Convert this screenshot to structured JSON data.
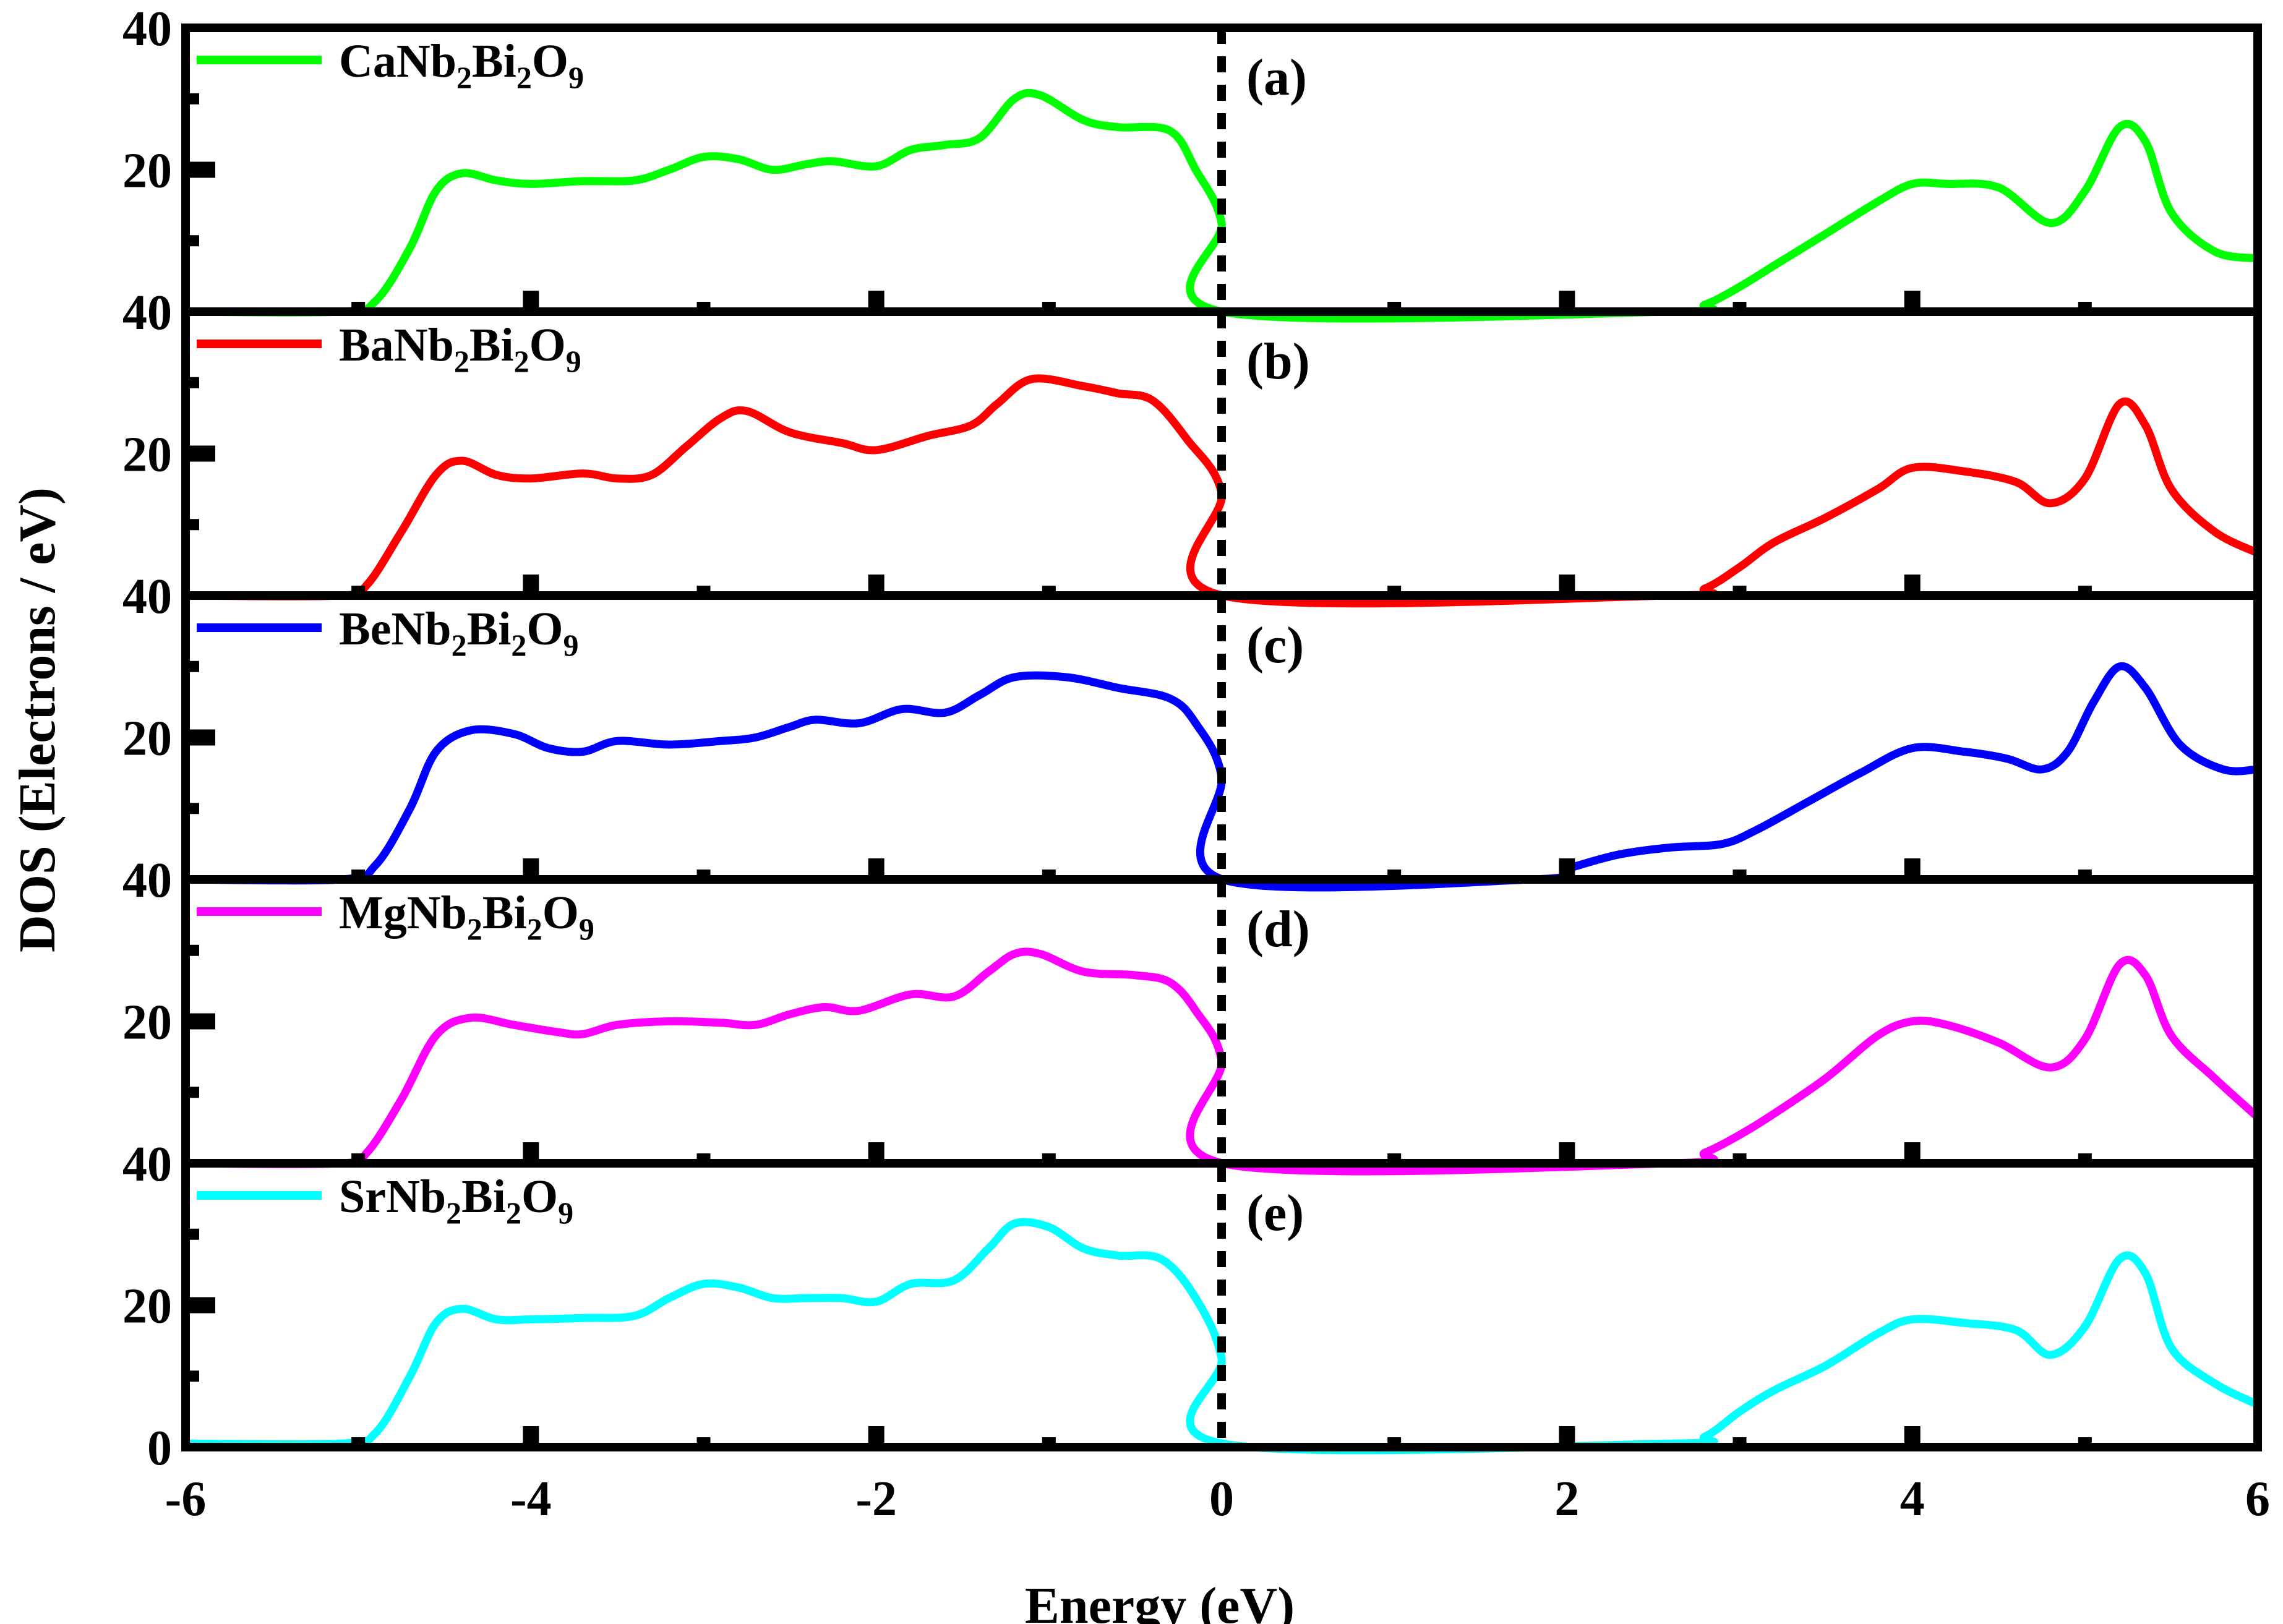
{
  "chart_data": {
    "type": "line",
    "xlabel": "Energy (eV)",
    "ylabel": "DOS (Electrons / eV)",
    "xlim": [
      -6,
      6
    ],
    "ylim": [
      0,
      40
    ],
    "x_ticks": [
      -6,
      -4,
      -2,
      0,
      2,
      4,
      6
    ],
    "x_tick_labels": [
      "-6",
      "-4",
      "-2",
      "0",
      "2",
      "4",
      "6"
    ],
    "y_tick_labels_top": [
      "40",
      "20",
      "40"
    ],
    "y_tick_labels_bottom": [
      "40",
      "20",
      "0"
    ],
    "fermi_level": 0,
    "grid": false,
    "legend_position": "top-left",
    "panels": [
      {
        "label": "(a)",
        "compound": {
          "base": "CaNb",
          "s1": "2",
          "mid": "Bi",
          "s2": "2",
          "end": "O",
          "s3": "9"
        },
        "color": "#00ff00",
        "points": [
          [
            -6,
            0
          ],
          [
            -5.1,
            0
          ],
          [
            -4.9,
            1.5
          ],
          [
            -4.7,
            9
          ],
          [
            -4.55,
            17
          ],
          [
            -4.4,
            19.5
          ],
          [
            -4.2,
            18.5
          ],
          [
            -4,
            18
          ],
          [
            -3.7,
            18.4
          ],
          [
            -3.4,
            18.5
          ],
          [
            -3.2,
            20
          ],
          [
            -3,
            21.8
          ],
          [
            -2.8,
            21.5
          ],
          [
            -2.6,
            20
          ],
          [
            -2.4,
            20.8
          ],
          [
            -2.25,
            21.2
          ],
          [
            -2,
            20.5
          ],
          [
            -1.8,
            22.8
          ],
          [
            -1.6,
            23.5
          ],
          [
            -1.4,
            24.5
          ],
          [
            -1.2,
            30
          ],
          [
            -1.05,
            30.5
          ],
          [
            -0.8,
            27
          ],
          [
            -0.6,
            26
          ],
          [
            -0.3,
            25.5
          ],
          [
            -0.15,
            20
          ],
          [
            0,
            12.5
          ],
          [
            0.005,
            0
          ],
          [
            2.6,
            0
          ],
          [
            2.8,
            1
          ],
          [
            3,
            3.5
          ],
          [
            3.2,
            6.5
          ],
          [
            3.5,
            11
          ],
          [
            3.8,
            15.5
          ],
          [
            4,
            18
          ],
          [
            4.2,
            18
          ],
          [
            4.5,
            17.5
          ],
          [
            4.8,
            12.5
          ],
          [
            5,
            17
          ],
          [
            5.2,
            26
          ],
          [
            5.35,
            24
          ],
          [
            5.5,
            14
          ],
          [
            5.75,
            8.5
          ],
          [
            6,
            7.5
          ]
        ]
      },
      {
        "label": "(b)",
        "compound": {
          "base": "BaNb",
          "s1": "2",
          "mid": "Bi",
          "s2": "2",
          "end": "O",
          "s3": "9"
        },
        "color": "#ff0000",
        "points": [
          [
            -6,
            0
          ],
          [
            -5.1,
            0
          ],
          [
            -4.95,
            1.5
          ],
          [
            -4.75,
            9
          ],
          [
            -4.55,
            17
          ],
          [
            -4.4,
            19
          ],
          [
            -4.2,
            17
          ],
          [
            -4,
            16.5
          ],
          [
            -3.7,
            17.2
          ],
          [
            -3.5,
            16.5
          ],
          [
            -3.3,
            17
          ],
          [
            -3.1,
            21
          ],
          [
            -2.9,
            25
          ],
          [
            -2.75,
            26
          ],
          [
            -2.5,
            23
          ],
          [
            -2.2,
            21.5
          ],
          [
            -2,
            20.5
          ],
          [
            -1.7,
            22.5
          ],
          [
            -1.45,
            24
          ],
          [
            -1.3,
            27
          ],
          [
            -1.1,
            30.5
          ],
          [
            -0.8,
            29.5
          ],
          [
            -0.6,
            28.5
          ],
          [
            -0.4,
            27.5
          ],
          [
            -0.2,
            22
          ],
          [
            0,
            14.5
          ],
          [
            0.005,
            0
          ],
          [
            2.6,
            0
          ],
          [
            2.8,
            1
          ],
          [
            3,
            4
          ],
          [
            3.2,
            7.5
          ],
          [
            3.5,
            11
          ],
          [
            3.8,
            15
          ],
          [
            4,
            18
          ],
          [
            4.3,
            17.5
          ],
          [
            4.6,
            16
          ],
          [
            4.8,
            13
          ],
          [
            5,
            16.5
          ],
          [
            5.2,
            27
          ],
          [
            5.35,
            24
          ],
          [
            5.5,
            15
          ],
          [
            5.75,
            9
          ],
          [
            6,
            6
          ]
        ]
      },
      {
        "label": "(c)",
        "compound": {
          "base": "BeNb",
          "s1": "2",
          "mid": "Bi",
          "s2": "2",
          "end": "O",
          "s3": "9"
        },
        "color": "#0000ff",
        "points": [
          [
            -6,
            0
          ],
          [
            -5.1,
            0
          ],
          [
            -4.9,
            2
          ],
          [
            -4.7,
            10
          ],
          [
            -4.55,
            18
          ],
          [
            -4.35,
            21
          ],
          [
            -4.1,
            20.5
          ],
          [
            -3.9,
            18.5
          ],
          [
            -3.7,
            18
          ],
          [
            -3.5,
            19.5
          ],
          [
            -3.2,
            19
          ],
          [
            -2.9,
            19.5
          ],
          [
            -2.7,
            20
          ],
          [
            -2.5,
            21.5
          ],
          [
            -2.35,
            22.5
          ],
          [
            -2.1,
            22
          ],
          [
            -1.85,
            24
          ],
          [
            -1.6,
            23.5
          ],
          [
            -1.4,
            26
          ],
          [
            -1.2,
            28.5
          ],
          [
            -0.9,
            28.5
          ],
          [
            -0.6,
            27
          ],
          [
            -0.3,
            25.5
          ],
          [
            -0.15,
            22
          ],
          [
            0,
            14.5
          ],
          [
            0.005,
            0
          ],
          [
            1.8,
            0
          ],
          [
            2,
            1.5
          ],
          [
            2.3,
            3.5
          ],
          [
            2.6,
            4.5
          ],
          [
            2.9,
            5
          ],
          [
            3.1,
            7
          ],
          [
            3.4,
            11
          ],
          [
            3.7,
            15
          ],
          [
            4,
            18.5
          ],
          [
            4.3,
            18
          ],
          [
            4.55,
            17
          ],
          [
            4.75,
            15.5
          ],
          [
            4.9,
            18
          ],
          [
            5.05,
            25
          ],
          [
            5.2,
            30
          ],
          [
            5.35,
            27
          ],
          [
            5.55,
            19
          ],
          [
            5.8,
            15.5
          ],
          [
            6,
            15.5
          ]
        ]
      },
      {
        "label": "(d)",
        "compound": {
          "base": "MgNb",
          "s1": "2",
          "mid": "Bi",
          "s2": "2",
          "end": "O",
          "s3": "9"
        },
        "color": "#ff00ff",
        "points": [
          [
            -6,
            0
          ],
          [
            -5.1,
            0
          ],
          [
            -4.95,
            1.5
          ],
          [
            -4.75,
            9
          ],
          [
            -4.55,
            18
          ],
          [
            -4.35,
            20.5
          ],
          [
            -4.1,
            19.5
          ],
          [
            -3.85,
            18.5
          ],
          [
            -3.7,
            18.2
          ],
          [
            -3.5,
            19.5
          ],
          [
            -3.2,
            20
          ],
          [
            -2.9,
            19.8
          ],
          [
            -2.7,
            19.5
          ],
          [
            -2.5,
            21
          ],
          [
            -2.3,
            22
          ],
          [
            -2.1,
            21.5
          ],
          [
            -1.8,
            23.8
          ],
          [
            -1.55,
            23.5
          ],
          [
            -1.35,
            27
          ],
          [
            -1.2,
            29.5
          ],
          [
            -1.05,
            29.5
          ],
          [
            -0.8,
            27
          ],
          [
            -0.5,
            26.5
          ],
          [
            -0.3,
            25.5
          ],
          [
            -0.15,
            21.5
          ],
          [
            0,
            14.5
          ],
          [
            0.005,
            0
          ],
          [
            2.6,
            0
          ],
          [
            2.8,
            1.5
          ],
          [
            3,
            4
          ],
          [
            3.2,
            7
          ],
          [
            3.5,
            12
          ],
          [
            3.8,
            18
          ],
          [
            4,
            20
          ],
          [
            4.2,
            19.5
          ],
          [
            4.5,
            17
          ],
          [
            4.8,
            13.5
          ],
          [
            5,
            17.5
          ],
          [
            5.2,
            28
          ],
          [
            5.35,
            26.5
          ],
          [
            5.5,
            18
          ],
          [
            5.75,
            12
          ],
          [
            6,
            6.5
          ]
        ]
      },
      {
        "label": "(e)",
        "compound": {
          "base": "SrNb",
          "s1": "2",
          "mid": "Bi",
          "s2": "2",
          "end": "O",
          "s3": "9"
        },
        "color": "#00ffff",
        "points": [
          [
            -6,
            0.5
          ],
          [
            -5.1,
            0.5
          ],
          [
            -4.9,
            2
          ],
          [
            -4.7,
            10
          ],
          [
            -4.55,
            17.5
          ],
          [
            -4.4,
            19.5
          ],
          [
            -4.2,
            18
          ],
          [
            -4,
            18
          ],
          [
            -3.7,
            18.2
          ],
          [
            -3.4,
            18.5
          ],
          [
            -3.2,
            21
          ],
          [
            -3,
            23
          ],
          [
            -2.8,
            22.5
          ],
          [
            -2.6,
            21
          ],
          [
            -2.4,
            21
          ],
          [
            -2.2,
            21
          ],
          [
            -2,
            20.5
          ],
          [
            -1.8,
            23
          ],
          [
            -1.55,
            23.5
          ],
          [
            -1.35,
            28
          ],
          [
            -1.2,
            31.5
          ],
          [
            -1,
            31
          ],
          [
            -0.8,
            28
          ],
          [
            -0.6,
            27
          ],
          [
            -0.35,
            26.5
          ],
          [
            -0.15,
            21
          ],
          [
            0,
            12.5
          ],
          [
            0.005,
            0.5
          ],
          [
            2.6,
            0.5
          ],
          [
            2.8,
            1.5
          ],
          [
            3,
            5
          ],
          [
            3.2,
            8
          ],
          [
            3.5,
            11.5
          ],
          [
            3.8,
            16
          ],
          [
            4,
            18
          ],
          [
            4.3,
            17.5
          ],
          [
            4.6,
            16.5
          ],
          [
            4.8,
            13
          ],
          [
            5,
            17
          ],
          [
            5.2,
            26.5
          ],
          [
            5.35,
            24.5
          ],
          [
            5.5,
            14
          ],
          [
            5.75,
            9
          ],
          [
            6,
            6
          ]
        ]
      }
    ]
  }
}
